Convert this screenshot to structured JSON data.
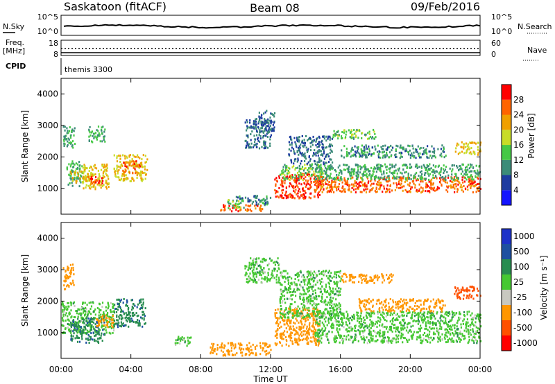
{
  "header": {
    "radar": "Saskatoon (fitACF)",
    "beam": "Beam 08",
    "date": "09/Feb/2016"
  },
  "nsky_panel": {
    "left_label": "N.Sky",
    "right_label": "N.Search",
    "left_ticks": [
      "10^5",
      "10^0"
    ],
    "right_ticks": [
      "10^5",
      "10^0"
    ]
  },
  "freq_panel": {
    "label_top": "Freq.",
    "label_bottom": "[MHz]",
    "right_label": "Nave",
    "left_ticks": [
      "18",
      "8"
    ],
    "right_ticks": [
      "60",
      "0"
    ]
  },
  "cpid_panel": {
    "label": "CPID",
    "program": "themis 3300"
  },
  "power_scale": {
    "title": "Power [dB]",
    "colors": [
      "#1414ff",
      "#1e3ca0",
      "#3c8c78",
      "#46c846",
      "#c8dc28",
      "#f0a000",
      "#ff6400",
      "#ff0000"
    ],
    "labels": [
      "4",
      "8",
      "12",
      "16",
      "20",
      "24",
      "28"
    ]
  },
  "velocity_scale": {
    "title": "Velocity [m s⁻¹]",
    "colors": [
      "#ff0000",
      "#ff5000",
      "#ff9600",
      "#c8c8c0",
      "#46c832",
      "#288c50",
      "#1e50a0",
      "#1e32c8"
    ],
    "labels": [
      "-1000",
      "-500",
      "-100",
      "-25",
      "25",
      "100",
      "500",
      "1000"
    ]
  },
  "chart_data": {
    "type": "heatmap",
    "xlabel": "Time UT",
    "x_tick_labels": [
      "00:00",
      "04:00",
      "08:00",
      "12:00",
      "16:00",
      "20:00",
      "00:00"
    ],
    "xlim": [
      0,
      24
    ],
    "ylabel": "Slant Range [km]",
    "ylim": [
      180,
      4500
    ],
    "y_tick_labels": [
      "1000",
      "2000",
      "3000",
      "4000"
    ],
    "panels": [
      {
        "quantity": "Power",
        "unit": "dB",
        "value_range": [
          0,
          30
        ],
        "regions": [
          {
            "t": [
              0.3,
              1.2
            ],
            "r": [
              1100,
              1900
            ],
            "v": 12
          },
          {
            "t": [
              0.5,
              1.6
            ],
            "r": [
              1200,
              1600
            ],
            "v": 20
          },
          {
            "t": [
              1.2,
              2.7
            ],
            "r": [
              1000,
              1800
            ],
            "v": 20
          },
          {
            "t": [
              1.5,
              2.4
            ],
            "r": [
              1150,
              1400
            ],
            "v": 28
          },
          {
            "t": [
              0.1,
              0.8
            ],
            "r": [
              2300,
              3000
            ],
            "v": 12
          },
          {
            "t": [
              1.5,
              2.5
            ],
            "r": [
              2500,
              3000
            ],
            "v": 12
          },
          {
            "t": [
              3.0,
              4.9
            ],
            "r": [
              1250,
              2100
            ],
            "v": 20
          },
          {
            "t": [
              3.5,
              4.5
            ],
            "r": [
              1500,
              1900
            ],
            "v": 26
          },
          {
            "t": [
              9.0,
              11.5
            ],
            "r": [
              300,
              500
            ],
            "v": 26
          },
          {
            "t": [
              9.5,
              10.5
            ],
            "r": [
              400,
              700
            ],
            "v": 14
          },
          {
            "t": [
              10.0,
              12.0
            ],
            "r": [
              500,
              800
            ],
            "v": 10
          },
          {
            "t": [
              10.5,
              12.0
            ],
            "r": [
              2300,
              3200
            ],
            "v": 8
          },
          {
            "t": [
              11.0,
              12.2
            ],
            "r": [
              2800,
              3500
            ],
            "v": 8
          },
          {
            "t": [
              12.2,
              14.8
            ],
            "r": [
              700,
              1500
            ],
            "v": 28
          },
          {
            "t": [
              12.5,
              15.0
            ],
            "r": [
              1300,
              1800
            ],
            "v": 14
          },
          {
            "t": [
              13.0,
              15.5
            ],
            "r": [
              1800,
              2700
            ],
            "v": 8
          },
          {
            "t": [
              14.5,
              24.0
            ],
            "r": [
              900,
              1400
            ],
            "v": 26
          },
          {
            "t": [
              14.5,
              24.0
            ],
            "r": [
              1300,
              1800
            ],
            "v": 12
          },
          {
            "t": [
              15.5,
              18.0
            ],
            "r": [
              2600,
              2900
            ],
            "v": 14
          },
          {
            "t": [
              16.0,
              22.0
            ],
            "r": [
              2000,
              2400
            ],
            "v": 10
          },
          {
            "t": [
              22.5,
              24.0
            ],
            "r": [
              2100,
              2500
            ],
            "v": 20
          }
        ]
      },
      {
        "quantity": "Velocity",
        "unit": "m s-1",
        "value_range": [
          -1000,
          1000
        ],
        "regions": [
          {
            "t": [
              0.0,
              3.0
            ],
            "r": [
              1000,
              2000
            ],
            "v": 0
          },
          {
            "t": [
              0.5,
              2.5
            ],
            "r": [
              700,
              1500
            ],
            "v": 80
          },
          {
            "t": [
              2.0,
              3.0
            ],
            "r": [
              1200,
              1600
            ],
            "v": -300
          },
          {
            "t": [
              3.0,
              4.8
            ],
            "r": [
              1200,
              2100
            ],
            "v": 80
          },
          {
            "t": [
              0.1,
              0.7
            ],
            "r": [
              2400,
              3200
            ],
            "v": -300
          },
          {
            "t": [
              6.5,
              7.5
            ],
            "r": [
              600,
              900
            ],
            "v": 0
          },
          {
            "t": [
              8.5,
              12.0
            ],
            "r": [
              300,
              700
            ],
            "v": -300
          },
          {
            "t": [
              10.5,
              12.5
            ],
            "r": [
              2600,
              3400
            ],
            "v": 0
          },
          {
            "t": [
              12.2,
              14.8
            ],
            "r": [
              600,
              1800
            ],
            "v": -300
          },
          {
            "t": [
              12.5,
              16.0
            ],
            "r": [
              1500,
              3000
            ],
            "v": 0
          },
          {
            "t": [
              14.5,
              24.0
            ],
            "r": [
              700,
              1700
            ],
            "v": 0
          },
          {
            "t": [
              16.0,
              19.0
            ],
            "r": [
              2600,
              2900
            ],
            "v": -300
          },
          {
            "t": [
              17.0,
              22.0
            ],
            "r": [
              1700,
              2100
            ],
            "v": -300
          },
          {
            "t": [
              22.5,
              24.0
            ],
            "r": [
              2100,
              2500
            ],
            "v": -600
          }
        ]
      }
    ]
  }
}
